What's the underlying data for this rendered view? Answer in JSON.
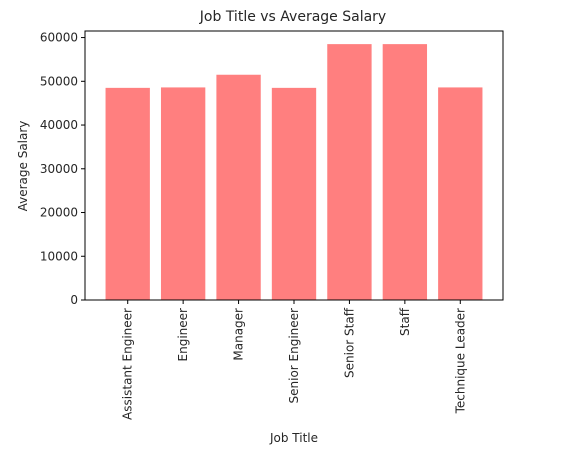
{
  "chart_data": {
    "type": "bar",
    "title": "Job Title vs Average Salary",
    "xlabel": "Job Title",
    "ylabel": "Average Salary",
    "categories": [
      "Assistant Engineer",
      "Engineer",
      "Manager",
      "Senior Engineer",
      "Senior Staff",
      "Staff",
      "Technique Leader"
    ],
    "values": [
      48500,
      48600,
      51500,
      48500,
      58500,
      58500,
      48600
    ],
    "yticks": [
      0,
      10000,
      20000,
      30000,
      40000,
      50000,
      60000
    ],
    "ylim": [
      0,
      61500
    ],
    "bar_color": "#ff7f7f",
    "grid": false,
    "legend": "none"
  }
}
